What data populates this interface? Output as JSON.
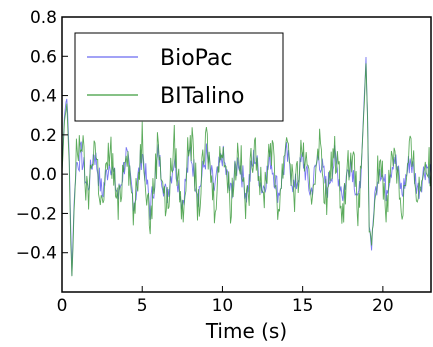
{
  "chart_data": {
    "type": "line",
    "title": "",
    "xlabel": "Time (s)",
    "ylabel": "",
    "xlim": [
      0,
      23
    ],
    "ylim": [
      -0.6,
      0.8
    ],
    "xticks": [
      0,
      5,
      10,
      15,
      20
    ],
    "yticks": [
      -0.4,
      -0.2,
      0.0,
      0.2,
      0.4,
      0.6,
      0.8
    ],
    "ytick_labels": [
      "−0.4",
      "−0.2",
      "0.0",
      "0.2",
      "0.4",
      "0.6",
      "0.8"
    ],
    "grid": false,
    "legend_position": "top-left",
    "series": [
      {
        "name": "BioPac",
        "color": "#6a6af0",
        "points": [
          [
            0.0,
            0.02
          ],
          [
            0.15,
            0.3
          ],
          [
            0.3,
            0.4
          ],
          [
            0.45,
            0.1
          ],
          [
            0.55,
            -0.3
          ],
          [
            0.62,
            -0.5
          ],
          [
            0.75,
            -0.15
          ],
          [
            0.9,
            0.05
          ],
          [
            1.2,
            0.1
          ],
          [
            1.6,
            -0.08
          ],
          [
            2.0,
            0.12
          ],
          [
            2.5,
            -0.1
          ],
          [
            3.0,
            0.08
          ],
          [
            3.5,
            -0.12
          ],
          [
            4.0,
            0.1
          ],
          [
            4.5,
            -0.15
          ],
          [
            5.0,
            0.12
          ],
          [
            5.5,
            -0.18
          ],
          [
            6.0,
            0.1
          ],
          [
            6.5,
            -0.12
          ],
          [
            7.0,
            0.08
          ],
          [
            7.5,
            -0.15
          ],
          [
            8.0,
            0.12
          ],
          [
            8.5,
            -0.1
          ],
          [
            9.0,
            0.1
          ],
          [
            9.5,
            -0.08
          ],
          [
            10.0,
            0.1
          ],
          [
            10.5,
            -0.1
          ],
          [
            11.0,
            0.08
          ],
          [
            11.5,
            -0.1
          ],
          [
            12.0,
            0.1
          ],
          [
            12.5,
            -0.08
          ],
          [
            13.0,
            0.08
          ],
          [
            13.5,
            -0.1
          ],
          [
            14.0,
            0.1
          ],
          [
            14.5,
            -0.08
          ],
          [
            15.0,
            0.08
          ],
          [
            15.5,
            -0.1
          ],
          [
            16.0,
            0.1
          ],
          [
            16.5,
            -0.08
          ],
          [
            17.0,
            0.08
          ],
          [
            17.5,
            -0.1
          ],
          [
            18.0,
            0.08
          ],
          [
            18.5,
            -0.15
          ],
          [
            18.7,
            0.1
          ],
          [
            18.85,
            0.4
          ],
          [
            18.95,
            0.58
          ],
          [
            19.05,
            0.3
          ],
          [
            19.15,
            -0.25
          ],
          [
            19.3,
            -0.38
          ],
          [
            19.5,
            -0.1
          ],
          [
            19.8,
            0.05
          ],
          [
            20.2,
            -0.08
          ],
          [
            20.7,
            0.1
          ],
          [
            21.2,
            -0.1
          ],
          [
            21.7,
            0.08
          ],
          [
            22.2,
            -0.08
          ],
          [
            22.7,
            0.05
          ],
          [
            23.0,
            0.0
          ]
        ]
      },
      {
        "name": "BITalino",
        "color": "#3f9c3f",
        "points": [
          [
            0.0,
            0.0
          ],
          [
            0.15,
            0.25
          ],
          [
            0.3,
            0.36
          ],
          [
            0.45,
            0.05
          ],
          [
            0.55,
            -0.35
          ],
          [
            0.62,
            -0.52
          ],
          [
            0.75,
            -0.2
          ],
          [
            0.9,
            0.08
          ],
          [
            1.2,
            0.2
          ],
          [
            1.6,
            -0.15
          ],
          [
            2.0,
            0.18
          ],
          [
            2.5,
            -0.18
          ],
          [
            3.0,
            0.15
          ],
          [
            3.5,
            -0.2
          ],
          [
            4.0,
            0.18
          ],
          [
            4.5,
            -0.22
          ],
          [
            5.0,
            0.2
          ],
          [
            5.5,
            -0.25
          ],
          [
            6.0,
            0.18
          ],
          [
            6.5,
            -0.2
          ],
          [
            7.0,
            0.15
          ],
          [
            7.5,
            -0.2
          ],
          [
            8.0,
            0.22
          ],
          [
            8.5,
            -0.18
          ],
          [
            9.0,
            0.18
          ],
          [
            9.5,
            -0.15
          ],
          [
            10.0,
            0.18
          ],
          [
            10.5,
            -0.15
          ],
          [
            11.0,
            0.15
          ],
          [
            11.5,
            -0.18
          ],
          [
            12.0,
            0.2
          ],
          [
            12.5,
            -0.15
          ],
          [
            13.0,
            0.18
          ],
          [
            13.5,
            -0.18
          ],
          [
            14.0,
            0.22
          ],
          [
            14.5,
            -0.12
          ],
          [
            15.0,
            0.15
          ],
          [
            15.5,
            -0.15
          ],
          [
            16.0,
            0.18
          ],
          [
            16.5,
            -0.15
          ],
          [
            17.0,
            0.15
          ],
          [
            17.5,
            -0.18
          ],
          [
            18.0,
            0.15
          ],
          [
            18.5,
            -0.2
          ],
          [
            18.7,
            0.12
          ],
          [
            18.85,
            0.38
          ],
          [
            18.95,
            0.55
          ],
          [
            19.05,
            0.25
          ],
          [
            19.15,
            -0.28
          ],
          [
            19.3,
            -0.35
          ],
          [
            19.5,
            -0.15
          ],
          [
            19.8,
            0.1
          ],
          [
            20.2,
            -0.15
          ],
          [
            20.7,
            0.15
          ],
          [
            21.2,
            -0.18
          ],
          [
            21.7,
            0.12
          ],
          [
            22.2,
            -0.1
          ],
          [
            22.7,
            0.08
          ],
          [
            23.0,
            0.0
          ]
        ]
      }
    ]
  }
}
